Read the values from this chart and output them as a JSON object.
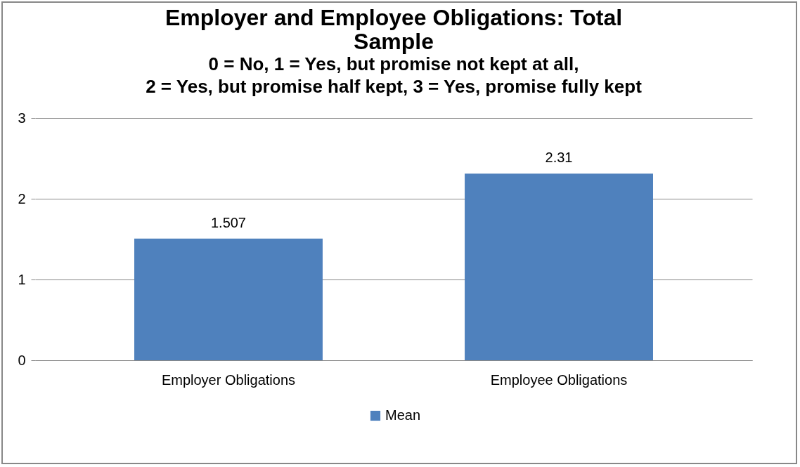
{
  "chart_data": {
    "type": "bar",
    "title": "Employer and Employee Obligations: Total\nSample",
    "subtitle": "0 = No, 1 = Yes, but promise not kept at all,\n2 = Yes, but promise half kept, 3 = Yes, promise fully kept",
    "categories": [
      "Employer Obligations",
      "Employee Obligations"
    ],
    "series": [
      {
        "name": "Mean",
        "color": "#4f81bd",
        "values": [
          1.507,
          2.31
        ]
      }
    ],
    "ylim": [
      0,
      3
    ],
    "yticks": [
      0,
      1,
      2,
      3
    ],
    "grid": "y",
    "legend": "bottom",
    "data_labels": true
  }
}
